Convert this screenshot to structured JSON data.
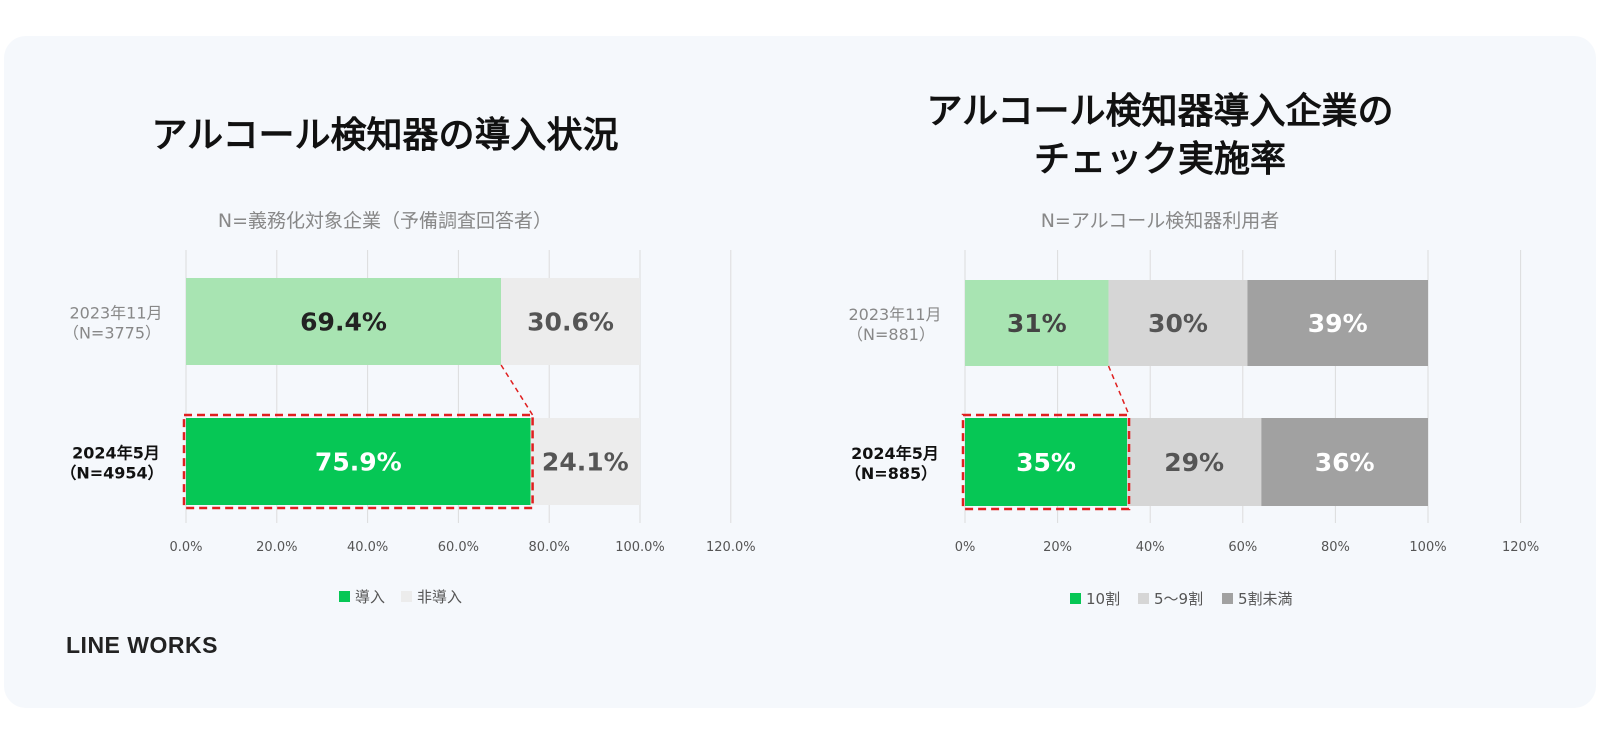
{
  "brand": {
    "logo": "LINE WORKS"
  },
  "colors": {
    "green_light": "#a8e4b2",
    "green": "#06c755",
    "gray_light": "#ececec",
    "gray_mid": "#d6d6d6",
    "gray_dark": "#a1a1a1",
    "dashed_red": "#e02020"
  },
  "chart_data": [
    {
      "type": "bar",
      "orientation": "horizontal",
      "stacked": true,
      "title": "アルコール検知器の導入状況",
      "subtitle": "N=義務化対象企業（予備調査回答者）",
      "categories": [
        {
          "line1": "2023年11月",
          "line2": "（N=3775）",
          "bold": false
        },
        {
          "line1": "2024年5月",
          "line2": "（N=4954）",
          "bold": true
        }
      ],
      "series": [
        {
          "name": "導入",
          "values": [
            69.4,
            75.9
          ],
          "labels": [
            "69.4%",
            "75.9%"
          ],
          "colors": [
            "#a8e4b2",
            "#06c755"
          ],
          "label_colors": [
            "#222222",
            "#ffffff"
          ]
        },
        {
          "name": "非導入",
          "values": [
            30.6,
            24.1
          ],
          "labels": [
            "30.6%",
            "24.1%"
          ],
          "colors": [
            "#ececec",
            "#ececec"
          ],
          "label_colors": [
            "#555555",
            "#555555"
          ]
        }
      ],
      "xlim": [
        0,
        120
      ],
      "xticks": [
        "0.0%",
        "20.0%",
        "40.0%",
        "60.0%",
        "80.0%",
        "100.0%",
        "120.0%"
      ],
      "grid": true,
      "legend_position": "bottom",
      "legend": [
        {
          "name": "導入",
          "color": "#06c755"
        },
        {
          "name": "非導入",
          "color": "#ececec"
        }
      ],
      "highlight": {
        "category_index": 1,
        "series_index": 0,
        "style": "dashed-red"
      }
    },
    {
      "type": "bar",
      "orientation": "horizontal",
      "stacked": true,
      "title": "アルコール検知器導入企業の",
      "title_line2": "チェック実施率",
      "subtitle": "N=アルコール検知器利用者",
      "categories": [
        {
          "line1": "2023年11月",
          "line2": "（N=881）",
          "bold": false
        },
        {
          "line1": "2024年5月",
          "line2": "（N=885）",
          "bold": true
        }
      ],
      "series": [
        {
          "name": "10割",
          "values": [
            31,
            35
          ],
          "labels": [
            "31%",
            "35%"
          ],
          "colors": [
            "#a8e4b2",
            "#06c755"
          ],
          "label_colors": [
            "#444444",
            "#ffffff"
          ]
        },
        {
          "name": "5～9割",
          "values": [
            30,
            29
          ],
          "labels": [
            "30%",
            "29%"
          ],
          "colors": [
            "#d6d6d6",
            "#d6d6d6"
          ],
          "label_colors": [
            "#555555",
            "#555555"
          ]
        },
        {
          "name": "5割未満",
          "values": [
            39,
            36
          ],
          "labels": [
            "39%",
            "36%"
          ],
          "colors": [
            "#a1a1a1",
            "#a1a1a1"
          ],
          "label_colors": [
            "#ffffff",
            "#ffffff"
          ]
        }
      ],
      "xlim": [
        0,
        120
      ],
      "xticks": [
        "0%",
        "20%",
        "40%",
        "60%",
        "80%",
        "100%",
        "120%"
      ],
      "grid": true,
      "legend_position": "bottom",
      "legend": [
        {
          "name": "10割",
          "color": "#06c755"
        },
        {
          "name": "5～9割",
          "color": "#d6d6d6"
        },
        {
          "name": "5割未満",
          "color": "#a1a1a1"
        }
      ],
      "highlight": {
        "category_index": 1,
        "series_index": 0,
        "style": "dashed-red"
      }
    }
  ]
}
